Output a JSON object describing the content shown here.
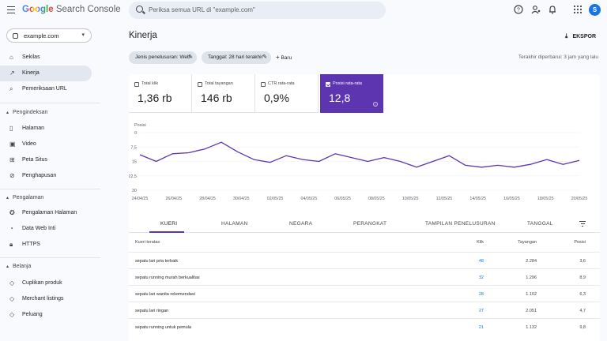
{
  "header": {
    "logo_google": "Google",
    "logo_product": "Search Console",
    "search_placeholder": "Periksa semua URL di \"example.com\"",
    "avatar_initial": "S",
    "icons": [
      "menu-icon",
      "search-icon",
      "help-icon",
      "manage-accounts-icon",
      "notifications-icon",
      "apps-icon"
    ]
  },
  "sidebar": {
    "property": "example.com",
    "items_top": [
      {
        "label": "Sekilas",
        "icon": "home-icon"
      },
      {
        "label": "Kinerja",
        "icon": "trending-icon",
        "active": true
      },
      {
        "label": "Pemeriksaan URL",
        "icon": "search-icon"
      }
    ],
    "sections": [
      {
        "title": "Pengindeksan",
        "items": [
          {
            "label": "Halaman",
            "icon": "page-icon"
          },
          {
            "label": "Video",
            "icon": "video-icon"
          },
          {
            "label": "Peta Situs",
            "icon": "sitemap-icon"
          },
          {
            "label": "Penghapusan",
            "icon": "removal-icon"
          }
        ]
      },
      {
        "title": "Pengalaman",
        "items": [
          {
            "label": "Pengalaman Halaman",
            "icon": "experience-icon"
          },
          {
            "label": "Data Web Inti",
            "icon": "speed-icon"
          },
          {
            "label": "HTTPS",
            "icon": "lock-icon"
          }
        ]
      },
      {
        "title": "Belanja",
        "items": [
          {
            "label": "Cuplikan produk",
            "icon": "product-icon"
          },
          {
            "label": "Merchant listings",
            "icon": "merchant-icon"
          },
          {
            "label": "Peluang",
            "icon": "opportunity-icon"
          }
        ]
      }
    ]
  },
  "main": {
    "title": "Kinerja",
    "export_label": "EKSPOR",
    "chips": [
      "Jenis penelusuran: Web",
      "Tanggal: 28 hari terakhir"
    ],
    "new_label": "Baru",
    "updated": "Terakhir diperbarui: 3 jam yang lalu",
    "metrics": [
      {
        "label": "Total klik",
        "value": "1,36 rb",
        "selected": false
      },
      {
        "label": "Total tayangan",
        "value": "146 rb",
        "selected": false
      },
      {
        "label": "CTR rata-rata",
        "value": "0,9%",
        "selected": false
      },
      {
        "label": "Posisi rata-rata",
        "value": "12,8",
        "selected": true
      }
    ],
    "accent": "#5e35b1"
  },
  "chart_data": {
    "type": "line",
    "ylabel": "Posisi",
    "y_ticks": [
      "0",
      "7,5",
      "15",
      "22,5",
      "30"
    ],
    "ylim": [
      0,
      30
    ],
    "y_inverted": true,
    "x_ticks": [
      "24/04/25",
      "26/04/25",
      "28/04/25",
      "30/04/25",
      "02/05/25",
      "04/05/25",
      "06/05/25",
      "08/05/25",
      "10/05/25",
      "12/05/25",
      "14/05/25",
      "16/05/25",
      "18/05/25",
      "20/05/25"
    ],
    "series": [
      {
        "color": "#5e35b1",
        "values": [
          11.5,
          15,
          11,
          10.5,
          8.5,
          5,
          10,
          14,
          15.5,
          12,
          14,
          15,
          11,
          13,
          15,
          13,
          15,
          18,
          15,
          12,
          17,
          18,
          17,
          18,
          16.5,
          14,
          16.5,
          14.5
        ]
      }
    ]
  },
  "table": {
    "tabs": [
      "KUERI",
      "HALAMAN",
      "NEGARA",
      "PERANGKAT",
      "TAMPILAN PENELUSURAN",
      "TANGGAL"
    ],
    "headers": {
      "query": "Kueri teratas",
      "clicks": "Klik",
      "impressions": "Tayangan",
      "position": "Posisi"
    },
    "rows": [
      {
        "query": "sepatu lari pria terbaik",
        "clicks": "48",
        "impressions": "2.284",
        "position": "3,6"
      },
      {
        "query": "sepatu running murah berkualitas",
        "clicks": "32",
        "impressions": "1.296",
        "position": "8,9"
      },
      {
        "query": "sepatu lari wanita rekomendasi",
        "clicks": "28",
        "impressions": "1.102",
        "position": "6,3"
      },
      {
        "query": "sepatu lari ringan",
        "clicks": "27",
        "impressions": "2.051",
        "position": "4,7"
      },
      {
        "query": "sepatu running untuk pemula",
        "clicks": "21",
        "impressions": "1.132",
        "position": "9,8"
      }
    ]
  }
}
